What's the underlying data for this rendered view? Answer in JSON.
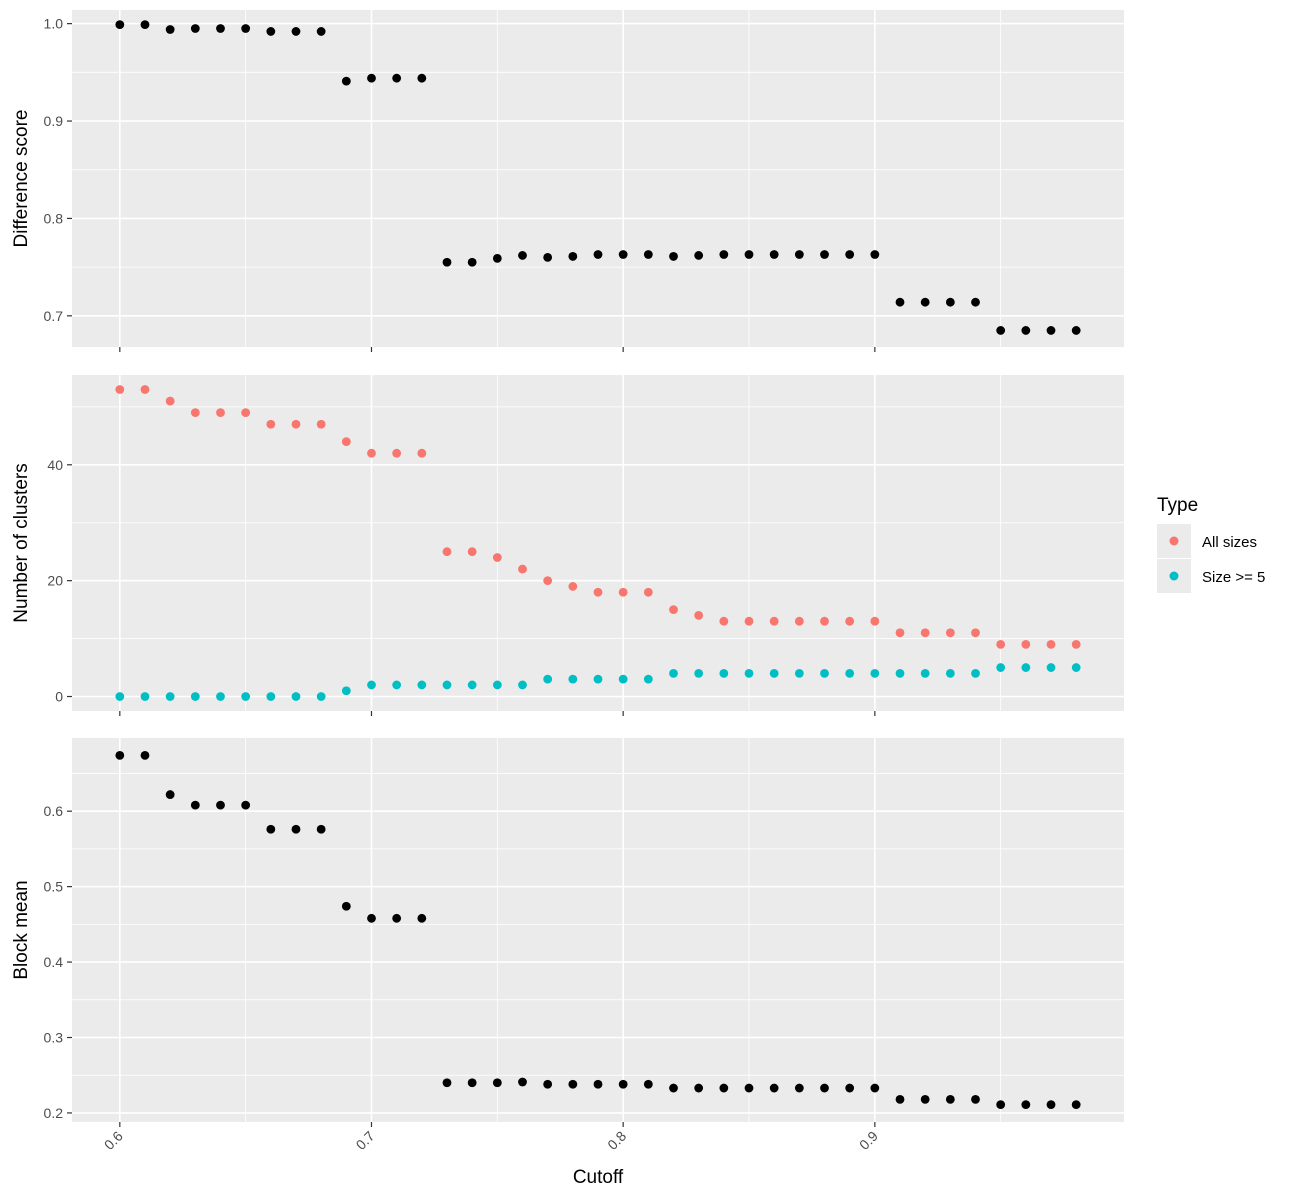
{
  "chart_data": {
    "type": "scatter",
    "x_label": "Cutoff",
    "x_ticks": [
      "0.6",
      "0.7",
      "0.8",
      "0.9"
    ],
    "x_tick_values": [
      0.6,
      0.7,
      0.8,
      0.9
    ],
    "x_range": [
      0.581,
      0.999
    ],
    "x": [
      0.6,
      0.61,
      0.62,
      0.63,
      0.64,
      0.65,
      0.66,
      0.67,
      0.68,
      0.69,
      0.7,
      0.71,
      0.72,
      0.73,
      0.74,
      0.75,
      0.76,
      0.77,
      0.78,
      0.79,
      0.8,
      0.81,
      0.82,
      0.83,
      0.84,
      0.85,
      0.86,
      0.87,
      0.88,
      0.89,
      0.9,
      0.91,
      0.92,
      0.93,
      0.94,
      0.95,
      0.96,
      0.97,
      0.98
    ],
    "panels": [
      {
        "y_label": "Difference score",
        "y_range": [
          0.668,
          1.014
        ],
        "y_ticks": [
          "0.7",
          "0.8",
          "0.9",
          "1.0"
        ],
        "y_tick_values": [
          0.7,
          0.8,
          0.9,
          1.0
        ],
        "series": [
          {
            "color": "#000000",
            "values": [
              0.999,
              0.999,
              0.994,
              0.995,
              0.995,
              0.995,
              0.992,
              0.992,
              0.992,
              0.941,
              0.944,
              0.944,
              0.944,
              0.755,
              0.755,
              0.759,
              0.762,
              0.76,
              0.761,
              0.763,
              0.763,
              0.763,
              0.761,
              0.762,
              0.763,
              0.763,
              0.763,
              0.763,
              0.763,
              0.763,
              0.763,
              0.714,
              0.714,
              0.714,
              0.714,
              0.685,
              0.685,
              0.685,
              0.685
            ]
          }
        ]
      },
      {
        "y_label": "Number of clusters",
        "y_range": [
          -2.5,
          55.5
        ],
        "y_ticks": [
          "0",
          "20",
          "40"
        ],
        "y_tick_values": [
          0,
          20,
          40
        ],
        "series": [
          {
            "name": "All sizes",
            "color": "#F8766D",
            "values": [
              53,
              53,
              51,
              49,
              49,
              49,
              47,
              47,
              47,
              44,
              42,
              42,
              42,
              25,
              25,
              24,
              22,
              20,
              19,
              18,
              18,
              18,
              15,
              14,
              13,
              13,
              13,
              13,
              13,
              13,
              13,
              11,
              11,
              11,
              11,
              9,
              9,
              9,
              9
            ]
          },
          {
            "name": "Size >= 5",
            "color": "#00BFC4",
            "values": [
              0,
              0,
              0,
              0,
              0,
              0,
              0,
              0,
              0,
              1,
              2,
              2,
              2,
              2,
              2,
              2,
              2,
              3,
              3,
              3,
              3,
              3,
              4,
              4,
              4,
              4,
              4,
              4,
              4,
              4,
              4,
              4,
              4,
              4,
              4,
              5,
              5,
              5,
              5
            ]
          }
        ]
      },
      {
        "y_label": "Block mean",
        "y_range": [
          0.188,
          0.697
        ],
        "y_ticks": [
          "0.2",
          "0.3",
          "0.4",
          "0.5",
          "0.6"
        ],
        "y_tick_values": [
          0.2,
          0.3,
          0.4,
          0.5,
          0.6
        ],
        "series": [
          {
            "color": "#000000",
            "values": [
              0.674,
              0.674,
              0.622,
              0.608,
              0.608,
              0.608,
              0.576,
              0.576,
              0.576,
              0.474,
              0.458,
              0.458,
              0.458,
              0.24,
              0.24,
              0.24,
              0.241,
              0.238,
              0.238,
              0.238,
              0.238,
              0.238,
              0.233,
              0.233,
              0.233,
              0.233,
              0.233,
              0.233,
              0.233,
              0.233,
              0.233,
              0.218,
              0.218,
              0.218,
              0.218,
              0.211,
              0.211,
              0.211,
              0.211
            ]
          }
        ]
      }
    ],
    "legend": {
      "title": "Type",
      "position": "right",
      "items": [
        {
          "label": "All sizes",
          "color": "#F8766D"
        },
        {
          "label": "Size >= 5",
          "color": "#00BFC4"
        }
      ]
    },
    "grid": true,
    "background": "#EBEBEB"
  }
}
